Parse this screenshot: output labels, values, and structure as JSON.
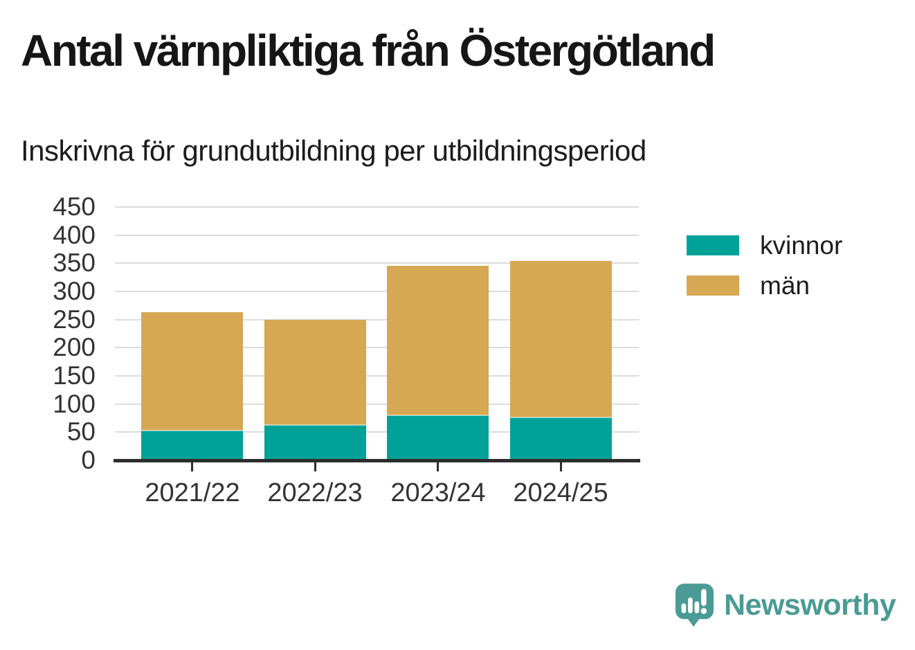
{
  "title": "Antal värnpliktiga från Östergötland",
  "subtitle": "Inskrivna för grundutbildning per utbildningsperiod",
  "colors": {
    "kvinnor": "#00a298",
    "man": "#d6a854",
    "axis": "#2d2d2d",
    "gridline": "#dcdcdc",
    "tick_text": "#333333",
    "brand_teal": "#4a9b94"
  },
  "chart_data": {
    "type": "bar",
    "stacked": true,
    "title": "Antal värnpliktiga från Östergötland",
    "subtitle": "Inskrivna för grundutbildning per utbildningsperiod",
    "categories": [
      "2021/22",
      "2022/23",
      "2023/24",
      "2024/25"
    ],
    "series": [
      {
        "name": "kvinnor",
        "color": "#00a298",
        "values": [
          53,
          63,
          80,
          76
        ]
      },
      {
        "name": "män",
        "color": "#d6a854",
        "values": [
          210,
          187,
          266,
          278
        ]
      }
    ],
    "stack_totals": [
      263,
      250,
      346,
      354
    ],
    "xlabel": "",
    "ylabel": "",
    "ylim": [
      0,
      450
    ],
    "yticks": [
      0,
      50,
      100,
      150,
      200,
      250,
      300,
      350,
      400,
      450
    ],
    "grid": true,
    "legend_position": "right"
  },
  "legend": {
    "items": [
      {
        "label": "kvinnor",
        "color": "#00a298"
      },
      {
        "label": "män",
        "color": "#d6a854"
      }
    ]
  },
  "branding": {
    "logo_text": "Newsworthy"
  }
}
